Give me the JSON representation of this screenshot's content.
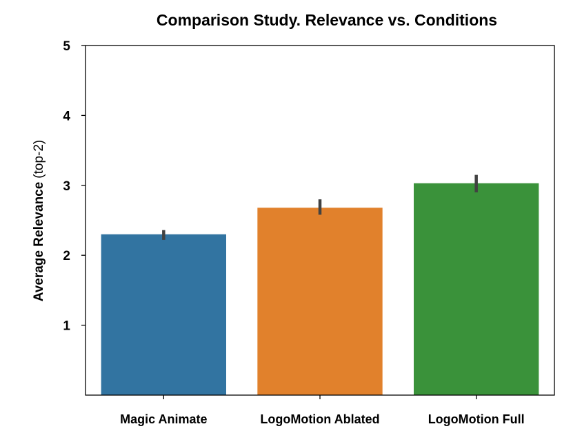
{
  "chart_data": {
    "type": "bar",
    "title": "Comparison Study. Relevance vs. Conditions",
    "xlabel": "",
    "ylabel": "Average Relevance",
    "ylabel_suffix": "(top-2)",
    "ylim": [
      0,
      5
    ],
    "yticks": [
      "1",
      "2",
      "3",
      "4",
      "5"
    ],
    "categories": [
      "Magic Animate",
      "LogoMotion Ablated",
      "LogoMotion Full"
    ],
    "values": [
      2.3,
      2.68,
      3.03
    ],
    "error_low": [
      2.22,
      2.58,
      2.9
    ],
    "error_high": [
      2.36,
      2.8,
      3.15
    ],
    "colors": [
      "#3274a1",
      "#e1812c",
      "#3a923a"
    ],
    "grid": false,
    "legend": "none"
  }
}
